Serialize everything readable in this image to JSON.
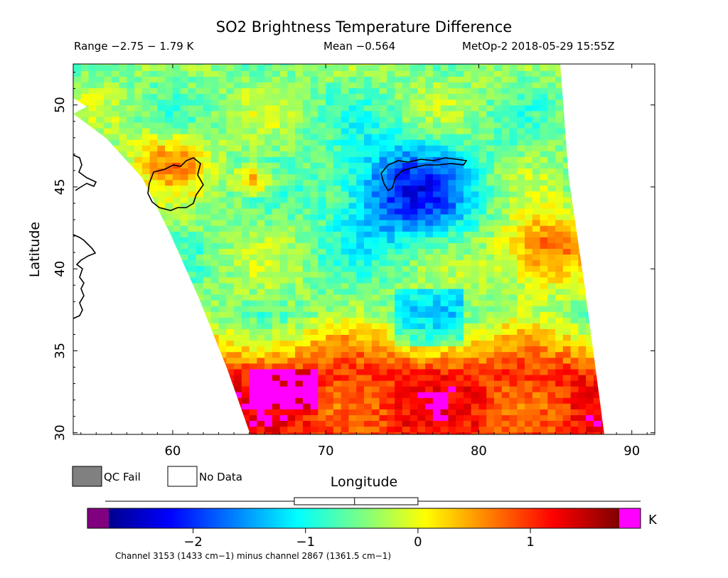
{
  "chart_data": {
    "type": "heatmap",
    "title": "SO2 Brightness Temperature Difference",
    "range_label": "Range −2.75 − 1.79 K",
    "mean_label": "Mean −0.564",
    "satellite_label": "MetOp-2 2018-05-29 15:55Z",
    "xlabel": "Longitude",
    "ylabel": "Latitude",
    "xlim": [
      53.5,
      91.5
    ],
    "ylim": [
      29.9,
      52.5
    ],
    "x_ticks": [
      60,
      70,
      80,
      90
    ],
    "y_ticks": [
      30,
      35,
      40,
      45,
      50
    ],
    "legend": {
      "qc_fail_label": "QC Fail",
      "no_data_label": "No Data",
      "qc_fail_color": "#808080",
      "no_data_color": "#ffffff"
    },
    "colorbar": {
      "unit": "K",
      "range": [
        -2.75,
        1.79
      ],
      "ticks": [
        -2,
        -1,
        0,
        1
      ],
      "tick_labels": [
        "−2",
        "−1",
        "0",
        "1"
      ],
      "under_color": "#800080",
      "over_color": "#ff00ff",
      "box_whisker": {
        "min": -2.75,
        "q1": -1.1,
        "median": -0.564,
        "q3": 0.0,
        "max": 1.79
      }
    },
    "footnote": "Channel 3153 (1433 cm−1) minus channel 2867 (1361.5 cm−1)",
    "regions": [
      {
        "desc": "high difference band south",
        "lon": [
          64,
          88
        ],
        "lat": [
          30,
          35
        ],
        "value": 1.0
      },
      {
        "desc": "magenta saturated patch",
        "lon": [
          64.5,
          70
        ],
        "lat": [
          31.5,
          33.5
        ],
        "value": 1.6
      },
      {
        "desc": "red patch east",
        "lon": [
          80,
          86
        ],
        "lat": [
          39,
          43
        ],
        "value": 1.0
      },
      {
        "desc": "low difference core",
        "lon": [
          72,
          78
        ],
        "lat": [
          42,
          47
        ],
        "value": -2.2
      },
      {
        "desc": "orange patch northwest",
        "lon": [
          57,
          62
        ],
        "lat": [
          45,
          48
        ],
        "value": 0.6
      }
    ]
  }
}
